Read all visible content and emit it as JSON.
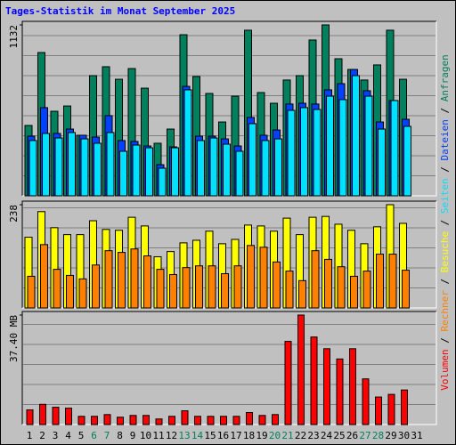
{
  "separator": "/",
  "chart_data": [
    {
      "type": "bar",
      "title": "Tages-Statistik im Monat September 2025",
      "ylim": [
        0,
        1132
      ],
      "yticks": [
        1132
      ],
      "series": [
        {
          "name": "Anfragen",
          "color": "#00805c",
          "values": [
            466,
            949,
            560,
            595,
            401,
            796,
            855,
            772,
            843,
            713,
            348,
            442,
            1067,
            790,
            678,
            489,
            660,
            1097,
            684,
            613,
            767,
            796,
            1032,
            1132,
            908,
            837,
            767,
            867,
            1097,
            772,
            null
          ]
        },
        {
          "name": "Dateien",
          "color": "#0040ff",
          "values": [
            395,
            584,
            413,
            442,
            401,
            389,
            531,
            366,
            360,
            330,
            206,
            324,
            725,
            395,
            395,
            377,
            330,
            519,
            401,
            436,
            608,
            613,
            608,
            702,
            743,
            837,
            696,
            489,
            631,
            507,
            null
          ]
        },
        {
          "name": "Seiten",
          "color": "#00e0ff",
          "values": [
            366,
            413,
            383,
            419,
            377,
            348,
            419,
            295,
            336,
            318,
            183,
            318,
            702,
            366,
            383,
            342,
            295,
            478,
            366,
            377,
            566,
            584,
            572,
            660,
            637,
            796,
            660,
            442,
            631,
            460,
            null
          ]
        }
      ]
    },
    {
      "type": "bar",
      "ylim": [
        0,
        238
      ],
      "yticks": [
        238
      ],
      "series": [
        {
          "name": "Besuche",
          "color": "#ffff00",
          "values": [
            163,
            222,
            185,
            169,
            169,
            201,
            181,
            179,
            209,
            189,
            118,
            130,
            150,
            156,
            177,
            148,
            158,
            191,
            189,
            177,
            207,
            169,
            209,
            211,
            193,
            179,
            148,
            187,
            238,
            195,
            null
          ]
        },
        {
          "name": "Rechner",
          "color": "#ff8000",
          "values": [
            73,
            146,
            89,
            75,
            67,
            99,
            132,
            128,
            136,
            120,
            89,
            77,
            93,
            97,
            97,
            79,
            97,
            144,
            140,
            106,
            85,
            63,
            132,
            112,
            95,
            73,
            85,
            124,
            124,
            87,
            null
          ]
        }
      ]
    },
    {
      "type": "bar",
      "ylim": [
        0,
        37.4
      ],
      "yticks": [
        {
          "value": 37.4,
          "label": "37.40 MB"
        }
      ],
      "categories": [
        "1",
        "2",
        "3",
        "4",
        "5",
        "6",
        "7",
        "8",
        "9",
        "10",
        "11",
        "12",
        "13",
        "14",
        "15",
        "16",
        "17",
        "18",
        "19",
        "20",
        "21",
        "22",
        "23",
        "24",
        "25",
        "26",
        "27",
        "28",
        "29",
        "30",
        "31"
      ],
      "category_colors": [
        "#000000",
        "#000000",
        "#000000",
        "#000000",
        "#000000",
        "#00805c",
        "#00805c",
        "#000000",
        "#000000",
        "#000000",
        "#000000",
        "#000000",
        "#00805c",
        "#00805c",
        "#000000",
        "#000000",
        "#000000",
        "#000000",
        "#000000",
        "#00805c",
        "#00805c",
        "#000000",
        "#000000",
        "#000000",
        "#000000",
        "#000000",
        "#00805c",
        "#00805c",
        "#000000",
        "#000000",
        "#000000"
      ],
      "series": [
        {
          "name": "Volumen",
          "color": "#ff0000",
          "values": [
            5.0,
            6.9,
            5.9,
            5.6,
            2.8,
            2.8,
            3.4,
            2.5,
            3.1,
            3.1,
            1.9,
            2.8,
            4.7,
            2.8,
            2.8,
            2.8,
            2.8,
            4.1,
            3.1,
            3.4,
            28.4,
            37.4,
            29.9,
            25.9,
            22.4,
            25.9,
            15.6,
            9.4,
            10.3,
            11.8,
            null
          ]
        }
      ]
    }
  ]
}
